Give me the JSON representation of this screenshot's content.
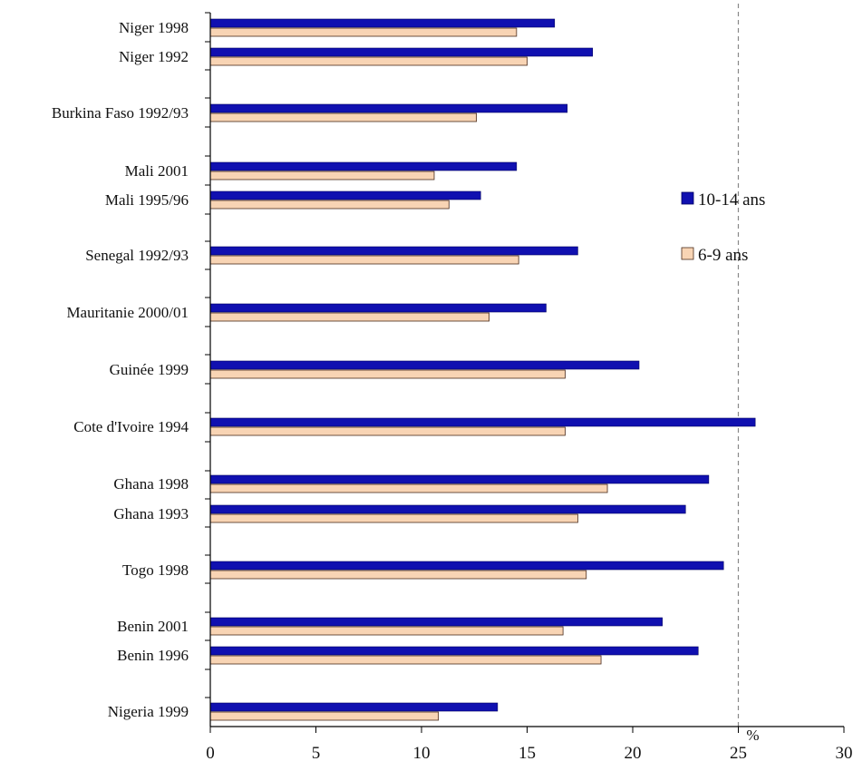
{
  "chart_data": {
    "type": "bar",
    "orientation": "horizontal",
    "categories": [
      "Niger 1998",
      "Niger 1992",
      "Burkina Faso 1992/93",
      "Mali 2001",
      "Mali 1995/96",
      "Senegal 1992/93",
      "Mauritanie 2000/01",
      "Guinée  1999",
      "Cote d'Ivoire 1994",
      "Ghana 1998",
      "Ghana 1993",
      "Togo 1998",
      "Benin 2001",
      "Benin 1996",
      "Nigeria 1999"
    ],
    "series": [
      {
        "name": "10-14 ans",
        "color": "#1010b0",
        "values": [
          16.3,
          18.1,
          16.9,
          14.5,
          12.8,
          17.4,
          15.9,
          20.3,
          25.8,
          23.6,
          22.5,
          24.3,
          21.4,
          23.1,
          13.6
        ]
      },
      {
        "name": "6-9 ans",
        "color": "#f8d4b4",
        "values": [
          14.5,
          15.0,
          12.6,
          10.6,
          11.3,
          14.6,
          13.2,
          16.8,
          16.8,
          18.8,
          17.4,
          17.8,
          16.7,
          18.5,
          10.8
        ]
      }
    ],
    "xlim": [
      0,
      30
    ],
    "xticks": [
      0,
      5,
      10,
      15,
      20,
      25,
      30
    ],
    "xunit": "%",
    "reference_line": 25,
    "legend_position": "right"
  }
}
